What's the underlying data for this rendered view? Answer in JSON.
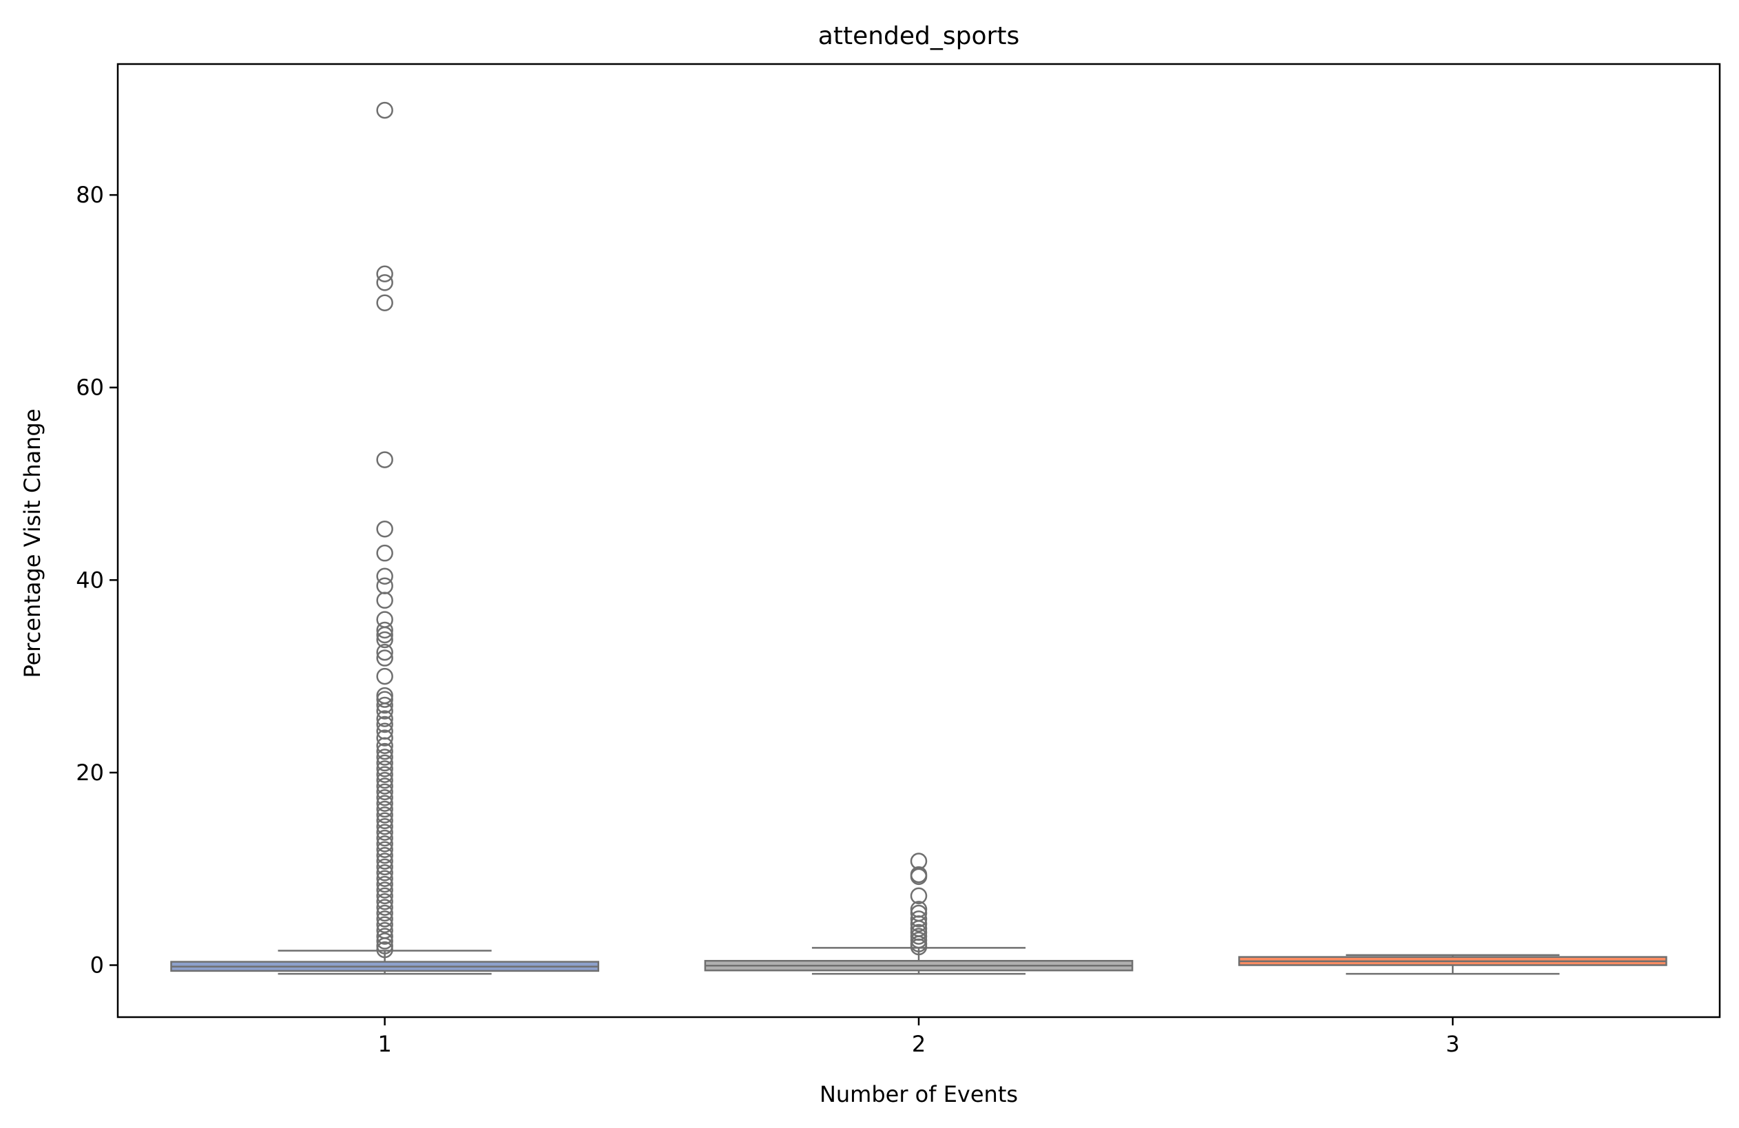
{
  "chart_data": {
    "type": "box",
    "title": "attended_sports",
    "xlabel": "Number of Events",
    "ylabel": "Percentage Visit Change",
    "categories": [
      "1",
      "2",
      "3"
    ],
    "ylim": [
      -5.4,
      93.6
    ],
    "yticks": [
      0,
      20,
      40,
      60,
      80
    ],
    "grid": false,
    "boxes": [
      {
        "category": "1",
        "color": "#8da0cb",
        "whisker_low": -0.9,
        "q1": -0.6,
        "median": -0.15,
        "q3": 0.35,
        "whisker_high": 1.5,
        "outliers": [
          88.8,
          71.8,
          70.9,
          68.8,
          52.5,
          45.3,
          42.8,
          40.4,
          39.4,
          37.9,
          35.9,
          34.8,
          34.3,
          33.8,
          32.5,
          31.9,
          30.0,
          28.0,
          27.6,
          27.0,
          26.4,
          25.6,
          25.0,
          24.3,
          23.6,
          22.8,
          22.2,
          21.6,
          21.0,
          20.4,
          19.8,
          19.2,
          18.6,
          18.0,
          17.4,
          16.8,
          16.2,
          15.6,
          15.0,
          14.4,
          13.8,
          13.2,
          12.6,
          12.0,
          11.4,
          10.8,
          10.2,
          9.6,
          9.0,
          8.4,
          7.8,
          7.2,
          6.6,
          6.0,
          5.4,
          4.8,
          4.2,
          3.6,
          3.0,
          2.5,
          2.0,
          1.6
        ]
      },
      {
        "category": "2",
        "color": "#b0b0b0",
        "whisker_low": -0.9,
        "q1": -0.55,
        "median": -0.05,
        "q3": 0.45,
        "whisker_high": 1.8,
        "outliers": [
          10.8,
          9.4,
          9.2,
          7.2,
          5.8,
          5.4,
          4.8,
          4.3,
          3.8,
          3.4,
          3.0,
          2.6,
          2.2,
          1.9
        ]
      },
      {
        "category": "3",
        "color": "#fc8d62",
        "whisker_low": -0.9,
        "q1": 0.0,
        "median": 0.4,
        "q3": 0.85,
        "whisker_high": 1.05,
        "outliers": []
      }
    ]
  }
}
